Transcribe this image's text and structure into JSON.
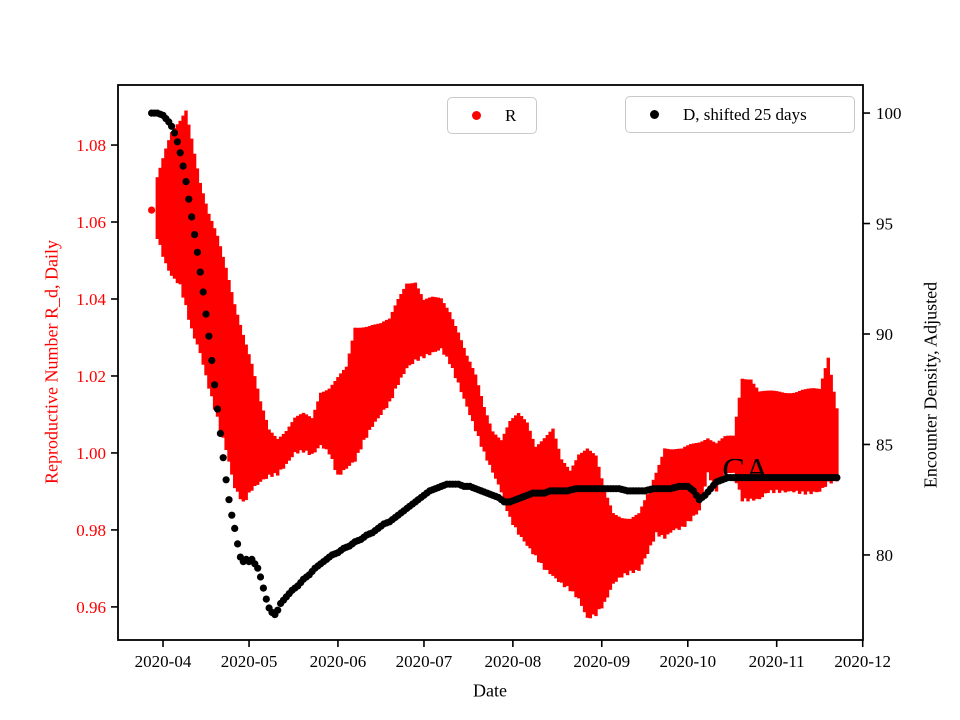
{
  "chart_data": {
    "type": "scatter",
    "title": "",
    "xlabel": "Date",
    "ylabel_left": "Reproductive Number R_d, Daily",
    "ylabel_right": "Encounter Density, Adjusted",
    "colors": {
      "r_series": "#ff0000",
      "d_series": "#000000",
      "left_axis_text": "#ff0000",
      "right_axis_text": "#000000",
      "legend_border": "#c9c9c9"
    },
    "legend": [
      {
        "label": "R",
        "color": "#ff0000"
      },
      {
        "label": "D, shifted 25 days",
        "color": "#000000"
      }
    ],
    "annotation": {
      "text": "CA",
      "day": 202,
      "value": 0.9927
    },
    "x_domain_days": [
      -8.7,
      251.1
    ],
    "x_epoch": "2020-03-25",
    "x_tick_days": [
      7,
      37,
      68,
      98,
      129,
      160,
      190,
      221,
      251
    ],
    "x_tick_labels": [
      "2020-04",
      "2020-05",
      "2020-06",
      "2020-07",
      "2020-08",
      "2020-09",
      "2020-10",
      "2020-11",
      "2020-12"
    ],
    "left_range": [
      0.9514,
      1.0956
    ],
    "left_ticks": [
      0.96,
      0.98,
      1.0,
      1.02,
      1.04,
      1.06,
      1.08
    ],
    "left_tick_labels": [
      "0.96",
      "0.98",
      "1.00",
      "1.02",
      "1.04",
      "1.06",
      "1.08"
    ],
    "right_range": [
      76.15,
      101.27
    ],
    "right_ticks": [
      80,
      85,
      90,
      95,
      100
    ],
    "right_tick_labels": [
      "80",
      "85",
      "90",
      "95",
      "100"
    ],
    "grid": false,
    "series": [
      {
        "name": "R",
        "axis": "left",
        "style": "band",
        "first_point": {
          "day": 3,
          "value": 1.0631
        },
        "band_points_day_lo_hi": [
          [
            5,
            1.056,
            1.072
          ],
          [
            8,
            1.049,
            1.079
          ],
          [
            10,
            1.046,
            1.083
          ],
          [
            13,
            1.0435,
            1.086
          ],
          [
            15,
            1.038,
            1.089
          ],
          [
            17,
            1.032,
            1.082
          ],
          [
            20,
            1.026,
            1.0705
          ],
          [
            23,
            1.017,
            1.062
          ],
          [
            26,
            1.009,
            1.056
          ],
          [
            29,
            1.001,
            1.048
          ],
          [
            32,
            0.991,
            1.039
          ],
          [
            35,
            0.987,
            1.031
          ],
          [
            38,
            0.9905,
            1.023
          ],
          [
            41,
            0.9925,
            1.013
          ],
          [
            44,
            0.994,
            1.006
          ],
          [
            47,
            0.9945,
            1.004
          ],
          [
            50,
            0.997,
            1.006
          ],
          [
            53,
            1.0,
            1.009
          ],
          [
            56,
            1.0005,
            1.01
          ],
          [
            59,
            0.9995,
            1.009
          ],
          [
            62,
            1.002,
            1.016
          ],
          [
            65,
            1.0,
            1.017
          ],
          [
            68,
            0.994,
            1.0195
          ],
          [
            71,
            0.996,
            1.022
          ],
          [
            74,
            0.998,
            1.0325
          ],
          [
            77,
            1.003,
            1.033
          ],
          [
            80,
            1.007,
            1.0335
          ],
          [
            83,
            1.01,
            1.0335
          ],
          [
            86,
            1.013,
            1.0345
          ],
          [
            89,
            1.018,
            1.04
          ],
          [
            92,
            1.022,
            1.0444
          ],
          [
            95,
            1.024,
            1.0445
          ],
          [
            98,
            1.025,
            1.0395
          ],
          [
            101,
            1.026,
            1.0402
          ],
          [
            104,
            1.027,
            1.0402
          ],
          [
            107,
            1.0235,
            1.037
          ],
          [
            110,
            1.018,
            1.0315
          ],
          [
            113,
            1.012,
            1.025
          ],
          [
            116,
            1.006,
            1.02
          ],
          [
            119,
            1.0,
            1.012
          ],
          [
            122,
            0.995,
            1.006
          ],
          [
            125,
            0.99,
            1.0035
          ],
          [
            128,
            0.983,
            1.008
          ],
          [
            131,
            0.979,
            1.01
          ],
          [
            134,
            0.976,
            1.008
          ],
          [
            137,
            0.973,
            1.002
          ],
          [
            140,
            0.97,
            1.004
          ],
          [
            143,
            0.968,
            1.006
          ],
          [
            146,
            0.966,
            0.998
          ],
          [
            149,
            0.9645,
            0.9955
          ],
          [
            152,
            0.962,
            1.0
          ],
          [
            155,
            0.957,
            1.0013
          ],
          [
            158,
            0.958,
            0.999
          ],
          [
            161,
            0.961,
            0.99
          ],
          [
            164,
            0.966,
            0.9845
          ],
          [
            167,
            0.968,
            0.9835
          ],
          [
            170,
            0.969,
            0.983
          ],
          [
            173,
            0.9695,
            0.984
          ],
          [
            176,
            0.974,
            0.989
          ],
          [
            179,
            0.979,
            0.995
          ],
          [
            182,
            0.978,
            1.0016
          ],
          [
            185,
            0.98,
            1.001
          ],
          [
            188,
            0.9805,
            1.0008
          ],
          [
            191,
            0.9826,
            1.002
          ],
          [
            194,
            0.985,
            1.0029
          ],
          [
            197,
            0.9947,
            1.0042
          ],
          [
            200,
            0.9904,
            1.0026
          ],
          [
            203,
            0.995,
            1.004
          ],
          [
            206,
            0.9947,
            1.0042
          ],
          [
            209,
            0.9878,
            1.0195
          ],
          [
            212,
            0.9878,
            1.0195
          ],
          [
            215,
            0.988,
            1.016
          ],
          [
            218,
            0.9899,
            1.0158
          ],
          [
            221,
            0.99,
            1.0158
          ],
          [
            224,
            0.9899,
            1.0158
          ],
          [
            227,
            0.99,
            1.016
          ],
          [
            230,
            0.9896,
            1.0164
          ],
          [
            233,
            0.9896,
            1.0164
          ],
          [
            236,
            0.99,
            1.0164
          ],
          [
            239,
            0.9922,
            1.025
          ],
          [
            242,
            0.993,
            1.012
          ]
        ]
      },
      {
        "name": "D, shifted 25 days",
        "axis": "right",
        "style": "dots",
        "points_day_value": [
          [
            3,
            100
          ],
          [
            5,
            100
          ],
          [
            7,
            99.9
          ],
          [
            9,
            99.6
          ],
          [
            10,
            99.4
          ],
          [
            11,
            99.1
          ],
          [
            12,
            98.7
          ],
          [
            13,
            98.2
          ],
          [
            14,
            97.6
          ],
          [
            15,
            96.9
          ],
          [
            16,
            96.1
          ],
          [
            17,
            95.3
          ],
          [
            18,
            94.5
          ],
          [
            19,
            93.7
          ],
          [
            20,
            92.8
          ],
          [
            21,
            91.9
          ],
          [
            22,
            90.9
          ],
          [
            23,
            89.9
          ],
          [
            24,
            88.8
          ],
          [
            25,
            87.7
          ],
          [
            26,
            86.6
          ],
          [
            27,
            85.5
          ],
          [
            28,
            84.4
          ],
          [
            29,
            83.4
          ],
          [
            30,
            82.5
          ],
          [
            31,
            81.8
          ],
          [
            32,
            81.2
          ],
          [
            33,
            80.5
          ],
          [
            34,
            79.9
          ],
          [
            35,
            79.7
          ],
          [
            36,
            79.8
          ],
          [
            37,
            79.7
          ],
          [
            38,
            79.8
          ],
          [
            39,
            79.6
          ],
          [
            40,
            79.4
          ],
          [
            41,
            79.0
          ],
          [
            42,
            78.5
          ],
          [
            43,
            78.0
          ],
          [
            44,
            77.6
          ],
          [
            45,
            77.4
          ],
          [
            46,
            77.3
          ],
          [
            47,
            77.5
          ],
          [
            48,
            77.8
          ],
          [
            50,
            78.1
          ],
          [
            52,
            78.4
          ],
          [
            54,
            78.6
          ],
          [
            56,
            78.9
          ],
          [
            58,
            79.1
          ],
          [
            60,
            79.4
          ],
          [
            62,
            79.6
          ],
          [
            64,
            79.8
          ],
          [
            66,
            80.0
          ],
          [
            68,
            80.1
          ],
          [
            70,
            80.3
          ],
          [
            72,
            80.4
          ],
          [
            74,
            80.6
          ],
          [
            76,
            80.7
          ],
          [
            78,
            80.9
          ],
          [
            80,
            81.0
          ],
          [
            82,
            81.2
          ],
          [
            84,
            81.4
          ],
          [
            86,
            81.5
          ],
          [
            88,
            81.7
          ],
          [
            90,
            81.9
          ],
          [
            92,
            82.1
          ],
          [
            94,
            82.3
          ],
          [
            96,
            82.5
          ],
          [
            98,
            82.7
          ],
          [
            100,
            82.9
          ],
          [
            102,
            83.0
          ],
          [
            104,
            83.1
          ],
          [
            106,
            83.2
          ],
          [
            108,
            83.2
          ],
          [
            110,
            83.2
          ],
          [
            112,
            83.1
          ],
          [
            114,
            83.1
          ],
          [
            116,
            83.0
          ],
          [
            118,
            82.9
          ],
          [
            120,
            82.8
          ],
          [
            122,
            82.7
          ],
          [
            124,
            82.6
          ],
          [
            126,
            82.4
          ],
          [
            128,
            82.4
          ],
          [
            130,
            82.5
          ],
          [
            132,
            82.6
          ],
          [
            134,
            82.7
          ],
          [
            136,
            82.8
          ],
          [
            138,
            82.8
          ],
          [
            140,
            82.8
          ],
          [
            142,
            82.9
          ],
          [
            145,
            82.9
          ],
          [
            148,
            82.9
          ],
          [
            151,
            83.0
          ],
          [
            154,
            83.0
          ],
          [
            157,
            83.0
          ],
          [
            160,
            83.0
          ],
          [
            163,
            83.0
          ],
          [
            166,
            83.0
          ],
          [
            169,
            82.9
          ],
          [
            172,
            82.9
          ],
          [
            175,
            82.9
          ],
          [
            178,
            83.0
          ],
          [
            181,
            83.0
          ],
          [
            184,
            83.0
          ],
          [
            187,
            83.1
          ],
          [
            190,
            83.1
          ],
          [
            192,
            82.9
          ],
          [
            194,
            82.5
          ],
          [
            196,
            82.7
          ],
          [
            198,
            83.0
          ],
          [
            200,
            83.3
          ],
          [
            202,
            83.4
          ],
          [
            204,
            83.5
          ],
          [
            207,
            83.5
          ],
          [
            210,
            83.5
          ],
          [
            213,
            83.5
          ],
          [
            216,
            83.5
          ],
          [
            219,
            83.5
          ],
          [
            222,
            83.5
          ],
          [
            225,
            83.5
          ],
          [
            228,
            83.5
          ],
          [
            231,
            83.5
          ],
          [
            234,
            83.5
          ],
          [
            237,
            83.5
          ],
          [
            240,
            83.5
          ],
          [
            242,
            83.5
          ]
        ]
      }
    ]
  }
}
